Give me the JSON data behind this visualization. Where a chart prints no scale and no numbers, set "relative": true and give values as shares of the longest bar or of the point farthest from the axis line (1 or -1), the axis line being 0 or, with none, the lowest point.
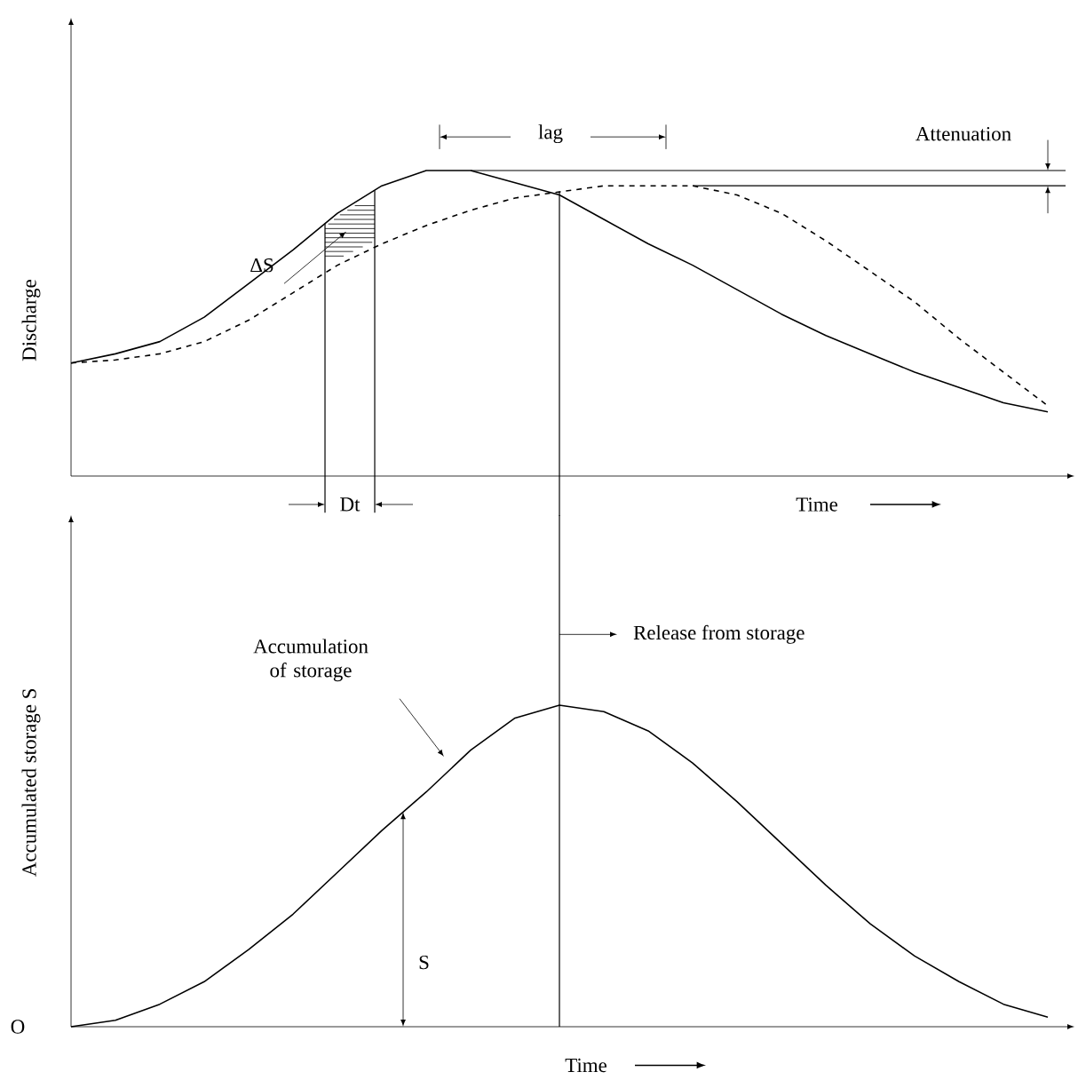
{
  "chart_data": [
    {
      "type": "line",
      "relative": true,
      "ylabel": "Discharge",
      "xlabel": "Time",
      "categories": [
        null,
        null,
        null,
        null,
        null,
        null,
        null,
        null,
        null,
        null,
        null,
        null,
        null,
        null,
        null,
        null,
        null,
        null,
        null,
        null,
        null,
        null,
        null
      ],
      "series": [
        {
          "color": "#000000",
          "line_style": "solid",
          "values": [
            0.37,
            0.4,
            0.44,
            0.52,
            0.63,
            0.74,
            0.86,
            0.95,
            1.0,
            1.0,
            0.96,
            0.92,
            0.84,
            0.76,
            0.69,
            0.61,
            0.53,
            0.46,
            0.4,
            0.34,
            0.29,
            0.24,
            0.21
          ]
        },
        {
          "color": "#000000",
          "line_style": "dashed",
          "values": [
            0.37,
            0.38,
            0.4,
            0.44,
            0.51,
            0.6,
            0.69,
            0.76,
            0.82,
            0.87,
            0.91,
            0.93,
            0.95,
            0.95,
            0.95,
            0.92,
            0.86,
            0.77,
            0.67,
            0.57,
            0.45,
            0.34,
            0.23
          ]
        }
      ],
      "ref_lines": [
        {
          "axis": "y",
          "value": 1.0
        },
        {
          "axis": "y",
          "value": 0.95
        }
      ],
      "annotations": [
        "ΔS",
        "lag",
        "Attenuation",
        "Dt"
      ]
    },
    {
      "type": "line",
      "relative": true,
      "ylabel": "Accumulated storage S",
      "xlabel": "Time",
      "categories": [
        null,
        null,
        null,
        null,
        null,
        null,
        null,
        null,
        null,
        null,
        null,
        null,
        null,
        null,
        null,
        null,
        null,
        null,
        null,
        null,
        null,
        null,
        null
      ],
      "series": [
        {
          "color": "#000000",
          "line_style": "solid",
          "values": [
            0,
            0.02,
            0.07,
            0.14,
            0.24,
            0.35,
            0.48,
            0.61,
            0.73,
            0.86,
            0.96,
            1.0,
            0.98,
            0.92,
            0.82,
            0.7,
            0.57,
            0.44,
            0.32,
            0.22,
            0.14,
            0.07,
            0.03
          ]
        }
      ],
      "annotations": [
        "Release from storage",
        "Accumulation of storage",
        "S",
        "O"
      ]
    }
  ]
}
